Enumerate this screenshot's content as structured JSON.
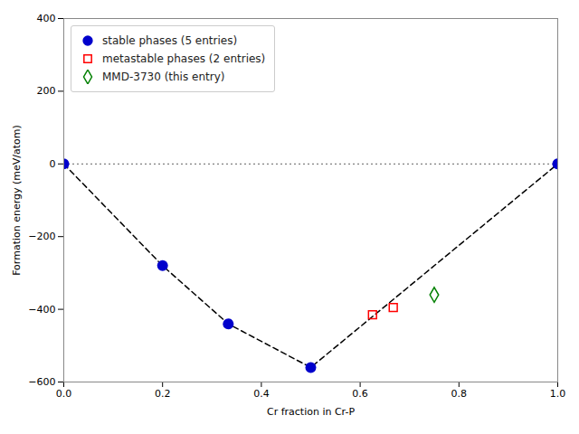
{
  "chart_data": {
    "type": "scatter",
    "xlabel": "Cr fraction in Cr-P",
    "ylabel": "Formation energy (meV/atom)",
    "xlim": [
      0.0,
      1.0
    ],
    "ylim": [
      -600,
      400
    ],
    "xticks": [
      {
        "value": 0,
        "label": "0.0"
      },
      0.2,
      0.4,
      0.6,
      0.8,
      {
        "value": 1,
        "label": "1.0"
      }
    ],
    "yticks": [
      -600,
      -400,
      -200,
      0,
      200,
      400
    ],
    "grid": false,
    "legend": "upper left",
    "series": [
      {
        "type": "hline",
        "color": "gray",
        "line_style": "dotted",
        "values": [
          0
        ]
      },
      {
        "type": "line",
        "color": "black",
        "line_style": "dashed",
        "x": [
          0.0,
          0.2,
          0.333,
          0.5,
          1.0
        ],
        "values": [
          0,
          -280,
          -440,
          -560,
          0
        ]
      },
      {
        "name": "stable phases (5 entries)",
        "type": "scatter",
        "marker": "circle",
        "color": "#0000cc",
        "x": [
          0.0,
          0.2,
          0.333,
          0.5,
          1.0
        ],
        "values": [
          0,
          -280,
          -440,
          -560,
          0
        ]
      },
      {
        "name": "metastable phases (2 entries)",
        "type": "scatter",
        "marker": "square-open",
        "color": "red",
        "x": [
          0.625,
          0.667
        ],
        "values": [
          -415,
          -395
        ]
      },
      {
        "name": "MMD-3730 (this entry)",
        "type": "scatter",
        "marker": "diamond-open",
        "color": "green",
        "x": [
          0.75
        ],
        "values": [
          -360
        ]
      }
    ]
  }
}
